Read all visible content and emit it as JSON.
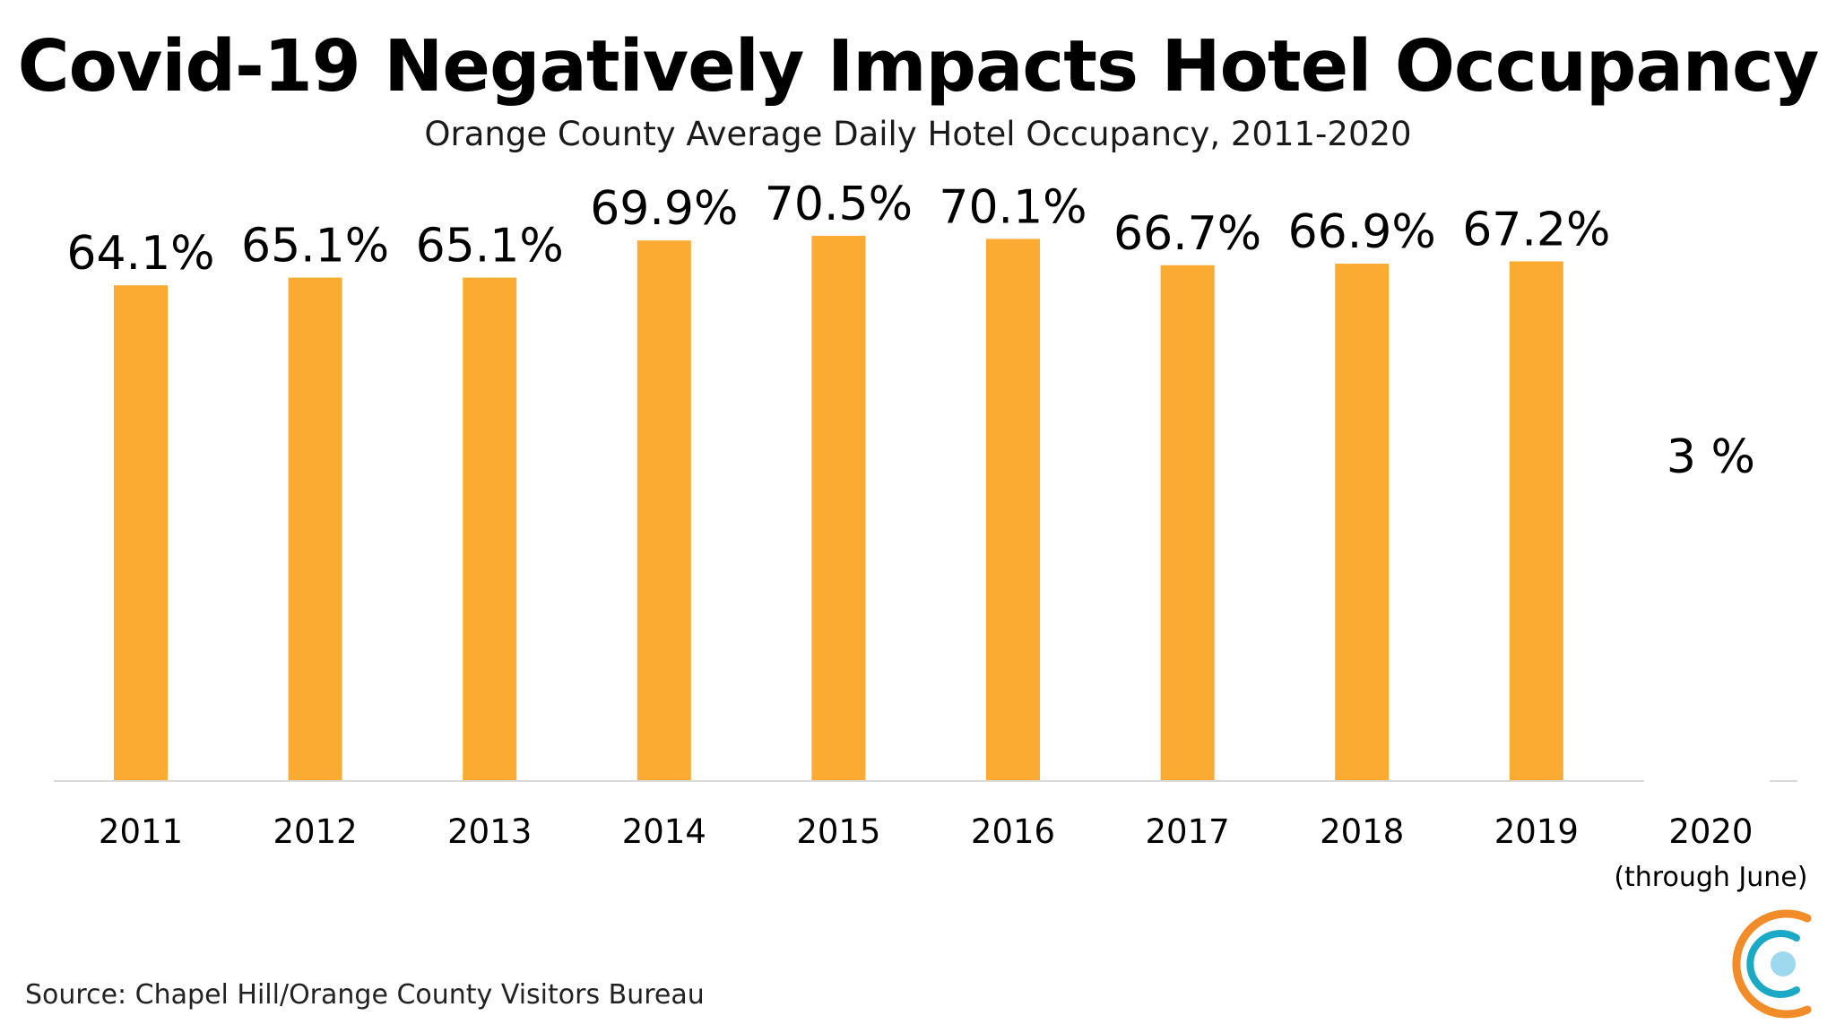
{
  "chart_data": {
    "type": "bar",
    "title": "Covid-19 Negatively Impacts Hotel Occupancy",
    "subtitle": "Orange County Average Daily Hotel Occupancy, 2011-2020",
    "categories": [
      "2011",
      "2012",
      "2013",
      "2014",
      "2015",
      "2016",
      "2017",
      "2018",
      "2019",
      "2020"
    ],
    "category_notes": [
      "",
      "",
      "",
      "",
      "",
      "",
      "",
      "",
      "",
      "(through June)"
    ],
    "values": [
      64.1,
      65.1,
      65.1,
      69.9,
      70.5,
      70.1,
      66.7,
      66.9,
      67.2,
      null
    ],
    "data_labels": [
      "64.1%",
      "65.1%",
      "65.1%",
      "69.9%",
      "70.5%",
      "70.1%",
      "66.7%",
      "66.9%",
      "67.2%",
      "3   %"
    ],
    "ylim": [
      0,
      70.5
    ],
    "xlabel": "",
    "ylabel": "",
    "grid": false,
    "legend": "none",
    "source": "Source: Chapel Hill/Orange County Visitors Bureau"
  },
  "colors": {
    "bar": "#FBAB32",
    "axis": "#d9d9d9",
    "logo_orange": "#F28C28",
    "logo_teal": "#1BA9C6",
    "logo_light_blue": "#9ED8EE"
  },
  "logo_icon": "community-c-logo-icon"
}
